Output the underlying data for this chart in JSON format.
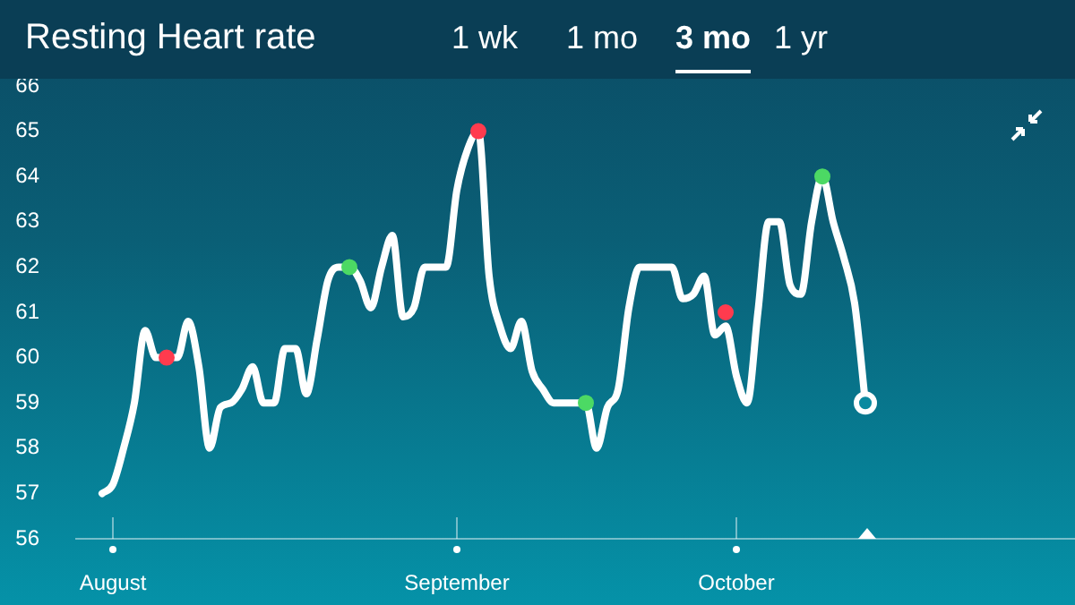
{
  "chart_data": {
    "type": "line",
    "title": "Resting Heart rate",
    "annotations": [
      "1 wk",
      "1 mo",
      "3 mo",
      "1 yr"
    ],
    "categories": [
      null,
      "August",
      null,
      null,
      null,
      null,
      null,
      null,
      null,
      null,
      null,
      null,
      null,
      null,
      null,
      null,
      null,
      null,
      null,
      null,
      null,
      null,
      null,
      null,
      null,
      null,
      null,
      null,
      null,
      null,
      null,
      null,
      null,
      "September",
      null,
      null,
      null,
      null,
      null,
      null,
      null,
      null,
      null,
      null,
      null,
      null,
      null,
      null,
      null,
      null,
      null,
      null,
      null,
      null,
      null,
      null,
      null,
      null,
      null,
      "October",
      null,
      null,
      null,
      null,
      null,
      null,
      null,
      null,
      null,
      null,
      null,
      null
    ],
    "series": [
      {
        "type": "line",
        "color": "#ffffff",
        "marker": "none",
        "values": [
          57,
          57.2,
          58,
          59,
          60.6,
          60,
          60,
          60,
          60.8,
          59.8,
          58,
          58.9,
          59,
          59.3,
          59.8,
          59,
          59,
          60.2,
          60.2,
          59.2,
          60.4,
          61.7,
          62,
          62,
          61.7,
          61.1,
          62,
          62.7,
          60.9,
          61.1,
          62,
          62,
          62,
          63.7,
          64.6,
          65,
          61.8,
          60.7,
          60.2,
          60.8,
          59.7,
          59.3,
          59,
          59,
          59,
          59,
          58,
          58.9,
          59.3,
          61.1,
          62,
          62,
          62,
          62,
          61.3,
          61.4,
          61.8,
          60.5,
          60.7,
          59.6,
          59,
          61,
          63,
          63,
          61.6,
          61.4,
          63,
          64,
          63,
          62.2,
          61.2,
          59
        ]
      },
      {
        "type": "scatter",
        "colors": [
          null,
          null,
          null,
          null,
          null,
          null,
          "#ff3b4e",
          null,
          null,
          null,
          null,
          null,
          null,
          null,
          null,
          null,
          null,
          null,
          null,
          null,
          null,
          null,
          null,
          "#4cd964",
          null,
          null,
          null,
          null,
          null,
          null,
          null,
          null,
          null,
          null,
          null,
          "#ff3b4e",
          null,
          null,
          null,
          null,
          null,
          null,
          null,
          null,
          null,
          "#4cd964",
          null,
          null,
          null,
          null,
          null,
          null,
          null,
          null,
          null,
          null,
          null,
          null,
          "#ff3b4e",
          null,
          null,
          null,
          null,
          null,
          null,
          null,
          null,
          "#4cd964",
          null,
          null,
          null,
          null
        ],
        "values": [
          null,
          null,
          null,
          null,
          null,
          null,
          60,
          null,
          null,
          null,
          null,
          null,
          null,
          null,
          null,
          null,
          null,
          null,
          null,
          null,
          null,
          null,
          null,
          62,
          null,
          null,
          null,
          null,
          null,
          null,
          null,
          null,
          null,
          null,
          null,
          65,
          null,
          null,
          null,
          null,
          null,
          null,
          null,
          null,
          null,
          59,
          null,
          null,
          null,
          null,
          null,
          null,
          null,
          null,
          null,
          null,
          null,
          null,
          61,
          null,
          null,
          null,
          null,
          null,
          null,
          null,
          null,
          64,
          null,
          null,
          null,
          null
        ]
      }
    ],
    "ylim": [
      56,
      66
    ],
    "yticks": [
      56,
      57,
      58,
      59,
      60,
      61,
      62,
      63,
      64,
      65,
      66
    ],
    "grid": false,
    "line_style": "solid"
  }
}
